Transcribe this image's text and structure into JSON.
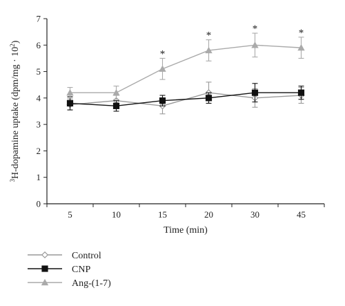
{
  "chart_data": {
    "type": "line",
    "title": "",
    "xlabel": "Time (min)",
    "ylabel_prefix": "3",
    "ylabel_main": "H-dopamine uptake (dpm/mg · 10",
    "ylabel_exp": "2",
    "ylabel_close": ")",
    "categories": [
      "5",
      "10",
      "15",
      "20",
      "30",
      "45"
    ],
    "ylim": [
      0,
      7
    ],
    "yticks": [
      "0",
      "1",
      "2",
      "3",
      "4",
      "5",
      "6",
      "7"
    ],
    "grid": false,
    "legend_position": "bottom-left",
    "series": [
      {
        "name": "Control",
        "marker": "diamond-open",
        "color": "#999999",
        "values": [
          3.75,
          3.9,
          3.7,
          4.2,
          4.0,
          4.1
        ],
        "errors": [
          0.2,
          0.2,
          0.3,
          0.4,
          0.35,
          0.3
        ]
      },
      {
        "name": "CNP",
        "marker": "square-filled",
        "color": "#111111",
        "values": [
          3.8,
          3.7,
          3.9,
          4.0,
          4.2,
          4.2
        ],
        "errors": [
          0.25,
          0.2,
          0.2,
          0.2,
          0.35,
          0.25
        ]
      },
      {
        "name": "Ang-(1-7)",
        "marker": "triangle-filled",
        "color": "#aaaaaa",
        "values": [
          4.2,
          4.2,
          5.1,
          5.8,
          6.0,
          5.9
        ],
        "errors": [
          0.2,
          0.25,
          0.4,
          0.4,
          0.45,
          0.4
        ]
      }
    ],
    "significance_markers": [
      {
        "category": "15",
        "y": 5.5,
        "label": "*"
      },
      {
        "category": "20",
        "y": 6.2,
        "label": "*"
      },
      {
        "category": "30",
        "y": 6.45,
        "label": "*"
      },
      {
        "category": "45",
        "y": 6.3,
        "label": "*"
      }
    ]
  }
}
